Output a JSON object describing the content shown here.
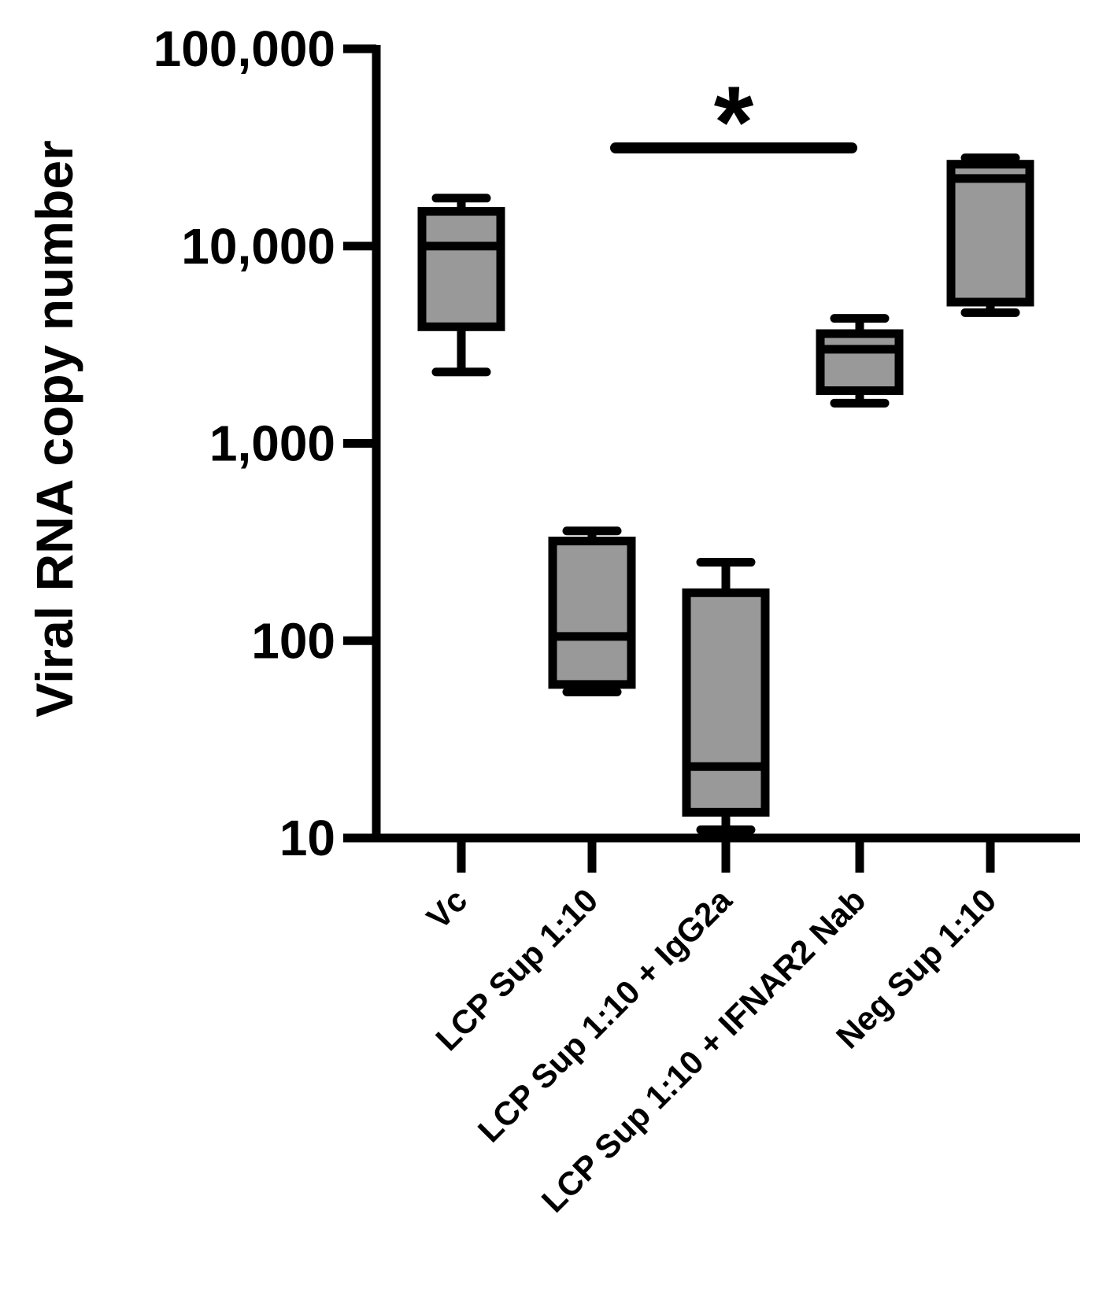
{
  "chart_data": {
    "type": "box",
    "ylabel": "Viral RNA copy number",
    "xlabel": "",
    "yscale": "log",
    "ylim": [
      10,
      100000
    ],
    "yticks": [
      10,
      100,
      1000,
      10000,
      100000
    ],
    "ytick_labels": [
      "10",
      "100",
      "1,000",
      "10,000",
      "100,000"
    ],
    "categories": [
      "Vc",
      "LCP Sup 1:10",
      "LCP Sup 1:10 + IgG2a",
      "LCP Sup 1:10 + IFNAR2 Nab",
      "Neg Sup 1:10"
    ],
    "boxes": [
      {
        "min": 2300,
        "q1": 3900,
        "median": 10000,
        "q3": 15000,
        "max": 17500
      },
      {
        "min": 55,
        "q1": 60,
        "median": 105,
        "q3": 320,
        "max": 360
      },
      {
        "min": 11,
        "q1": 13.5,
        "median": 23,
        "q3": 175,
        "max": 250
      },
      {
        "min": 1600,
        "q1": 1850,
        "median": 3000,
        "q3": 3600,
        "max": 4300
      },
      {
        "min": 4600,
        "q1": 5200,
        "median": 22000,
        "q3": 26000,
        "max": 28000
      }
    ],
    "box_fill": "#999999",
    "annotations": [
      {
        "text": "*",
        "from": 1,
        "to": 3
      }
    ]
  }
}
